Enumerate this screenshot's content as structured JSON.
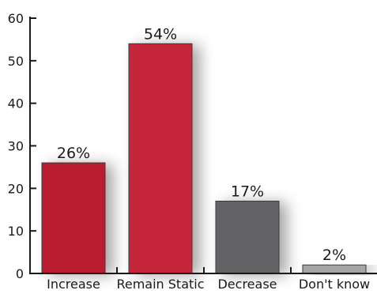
{
  "chart_data": {
    "type": "bar",
    "categories": [
      "Increase",
      "Remain Static",
      "Decrease",
      "Don't know"
    ],
    "values": [
      26,
      54,
      17,
      2
    ],
    "data_labels": [
      "26%",
      "54%",
      "17%",
      "2%"
    ],
    "colors": [
      "#b81d2d",
      "#c6283a",
      "#646466",
      "#a6a6a8"
    ],
    "ylim": [
      0,
      60
    ],
    "yticks": [
      0,
      10,
      20,
      30,
      40,
      50,
      60
    ],
    "ytick_labels": [
      "0",
      "10",
      "20",
      "30",
      "40",
      "50",
      "60"
    ],
    "grid": false,
    "legend": "none"
  }
}
